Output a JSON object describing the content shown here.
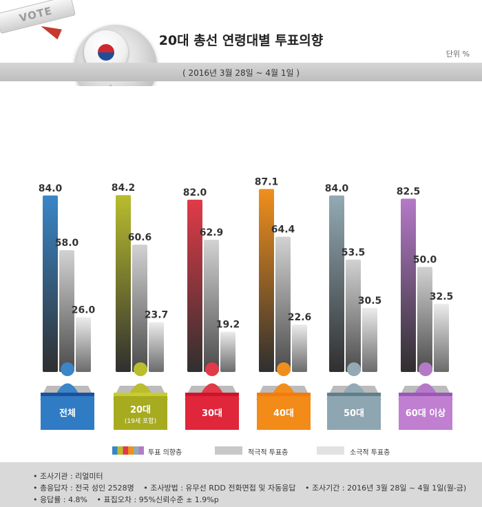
{
  "header": {
    "vote_tag": "VOTE",
    "title": "20대 총선 연령대별 투표의향",
    "unit": "단위 %",
    "period": "( 2016년 3월 28일 ~ 4월 1일 )"
  },
  "colors": {
    "intent": [
      "#3a86c8",
      "#b9bd2e",
      "#e03b48",
      "#f08f1d",
      "#93aab4",
      "#b47ac8"
    ],
    "label_band": [
      "#1e4f9c",
      "#c9cc2f",
      "#d0122a",
      "#f47a10",
      "#5f7f8c",
      "#9a57b5"
    ],
    "label_box": [
      "#2f7bc4",
      "#a7ab1f",
      "#e0263b",
      "#f28b17",
      "#8ea6b1",
      "#c07fd0"
    ],
    "active": "#c8c8c8",
    "passive": "#e2e2e2"
  },
  "chart_data": {
    "type": "bar",
    "categories": [
      "전체",
      "20대",
      "30대",
      "40대",
      "50대",
      "60대 이상"
    ],
    "category_notes": [
      "",
      "(19세 포함)",
      "",
      "",
      "",
      ""
    ],
    "series": [
      {
        "name": "투표 의향층",
        "values": [
          84.0,
          84.2,
          82.0,
          87.1,
          84.0,
          82.5
        ],
        "labels": [
          "84.0",
          "84.2",
          "82.0",
          "87.1",
          "84.0",
          "82.5"
        ]
      },
      {
        "name": "적극적 투표층",
        "values": [
          58.0,
          60.6,
          62.9,
          64.4,
          53.5,
          50.0
        ],
        "labels": [
          "58.0",
          "60.6",
          "62.9",
          "64.4",
          "53.5",
          "50.0"
        ]
      },
      {
        "name": "소극적 투표층",
        "values": [
          26.0,
          23.7,
          19.2,
          22.6,
          30.5,
          32.5
        ],
        "labels": [
          "26.0",
          "23.7",
          "19.2",
          "22.6",
          "30.5",
          "32.5"
        ]
      }
    ],
    "ylim": [
      0,
      100
    ]
  },
  "notes": {
    "line1": [
      "• 조사기관 : 리얼미터"
    ],
    "line2": [
      "• 총응답자 : 전국 성인 2528명",
      "• 조사방법 : 유무선 RDD 전화면접 및 자동응답",
      "• 조사기간 : 2016년 3월 28일 ~ 4월 1일(월-금)"
    ],
    "line3": [
      "• 응답률 : 4.8%",
      "• 표집오차 : 95%신뢰수준 ± 1.9%p"
    ]
  }
}
